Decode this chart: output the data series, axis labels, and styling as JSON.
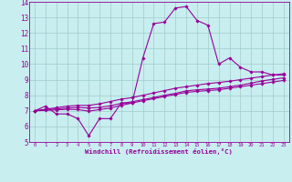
{
  "xlabel": "Windchill (Refroidissement éolien,°C)",
  "xlim": [
    -0.5,
    23.5
  ],
  "ylim": [
    5,
    14
  ],
  "xticks": [
    0,
    1,
    2,
    3,
    4,
    5,
    6,
    7,
    8,
    9,
    10,
    11,
    12,
    13,
    14,
    15,
    16,
    17,
    18,
    19,
    20,
    21,
    22,
    23
  ],
  "yticks": [
    5,
    6,
    7,
    8,
    9,
    10,
    11,
    12,
    13,
    14
  ],
  "bg_color": "#c8eef0",
  "line_color": "#990099",
  "grid_color": "#a0ccc8",
  "series": [
    [
      7.0,
      7.3,
      6.8,
      6.8,
      6.5,
      5.4,
      6.5,
      6.5,
      7.5,
      7.5,
      10.4,
      12.6,
      12.7,
      13.6,
      13.7,
      12.8,
      12.5,
      10.0,
      10.4,
      9.8,
      9.5,
      9.5,
      9.3,
      9.3
    ],
    [
      7.0,
      7.1,
      7.2,
      7.3,
      7.35,
      7.35,
      7.45,
      7.6,
      7.75,
      7.85,
      8.0,
      8.15,
      8.3,
      8.45,
      8.55,
      8.65,
      8.75,
      8.82,
      8.9,
      9.0,
      9.1,
      9.2,
      9.3,
      9.38
    ],
    [
      7.0,
      7.08,
      7.12,
      7.18,
      7.22,
      7.18,
      7.22,
      7.32,
      7.48,
      7.58,
      7.72,
      7.85,
      8.0,
      8.12,
      8.28,
      8.35,
      8.4,
      8.45,
      8.55,
      8.65,
      8.78,
      8.92,
      9.02,
      9.12
    ],
    [
      7.0,
      7.03,
      7.06,
      7.1,
      7.08,
      6.98,
      7.08,
      7.18,
      7.35,
      7.5,
      7.65,
      7.78,
      7.92,
      8.05,
      8.18,
      8.25,
      8.3,
      8.35,
      8.45,
      8.55,
      8.65,
      8.75,
      8.85,
      8.95
    ]
  ]
}
